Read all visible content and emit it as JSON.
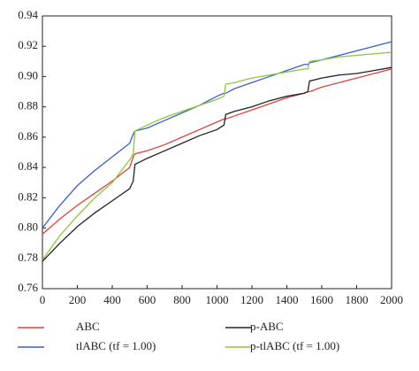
{
  "chart_data": {
    "type": "line",
    "x": [
      0,
      100,
      200,
      300,
      400,
      500,
      520,
      530,
      600,
      700,
      800,
      900,
      1000,
      1040,
      1050,
      1100,
      1200,
      1300,
      1400,
      1500,
      1520,
      1530,
      1600,
      1700,
      1800,
      1900,
      2000
    ],
    "series": [
      {
        "name": "ABC",
        "color": "#e0413b",
        "values": [
          0.796,
          0.806,
          0.815,
          0.823,
          0.831,
          0.84,
          0.847,
          0.849,
          0.851,
          0.855,
          0.86,
          0.865,
          0.87,
          0.872,
          0.872,
          0.874,
          0.878,
          0.882,
          0.886,
          0.889,
          0.89,
          0.89,
          0.893,
          0.896,
          0.899,
          0.902,
          0.905
        ]
      },
      {
        "name": "p-ABC",
        "color": "#222222",
        "values": [
          0.778,
          0.79,
          0.801,
          0.81,
          0.818,
          0.826,
          0.831,
          0.842,
          0.846,
          0.851,
          0.856,
          0.861,
          0.865,
          0.868,
          0.875,
          0.877,
          0.88,
          0.884,
          0.887,
          0.889,
          0.89,
          0.897,
          0.899,
          0.901,
          0.902,
          0.904,
          0.906
        ]
      },
      {
        "name": "tlABC (tf = 1.00)",
        "color": "#3a5fcd",
        "values": [
          0.8,
          0.815,
          0.828,
          0.838,
          0.847,
          0.856,
          0.862,
          0.864,
          0.866,
          0.871,
          0.876,
          0.881,
          0.887,
          0.889,
          0.889,
          0.892,
          0.896,
          0.9,
          0.904,
          0.908,
          0.908,
          0.909,
          0.911,
          0.914,
          0.917,
          0.92,
          0.923
        ]
      },
      {
        "name": "p-tlABC (tf = 1.00)",
        "color": "#8dc63f",
        "values": [
          0.779,
          0.795,
          0.808,
          0.82,
          0.83,
          0.845,
          0.849,
          0.864,
          0.868,
          0.873,
          0.877,
          0.881,
          0.885,
          0.887,
          0.895,
          0.896,
          0.899,
          0.901,
          0.903,
          0.905,
          0.905,
          0.91,
          0.911,
          0.913,
          0.914,
          0.915,
          0.916
        ]
      }
    ],
    "xlim": [
      0,
      2000
    ],
    "xticks": [
      0,
      200,
      400,
      600,
      800,
      1000,
      1200,
      1400,
      1600,
      1800,
      2000
    ],
    "ylim": [
      0.76,
      0.94
    ],
    "yticks": [
      0.76,
      0.78,
      {
        "value": 0.8,
        "label": "0.80"
      },
      0.82,
      0.84,
      0.86,
      0.88,
      {
        "value": 0.9,
        "label": "0.90"
      },
      0.92,
      0.94
    ]
  }
}
